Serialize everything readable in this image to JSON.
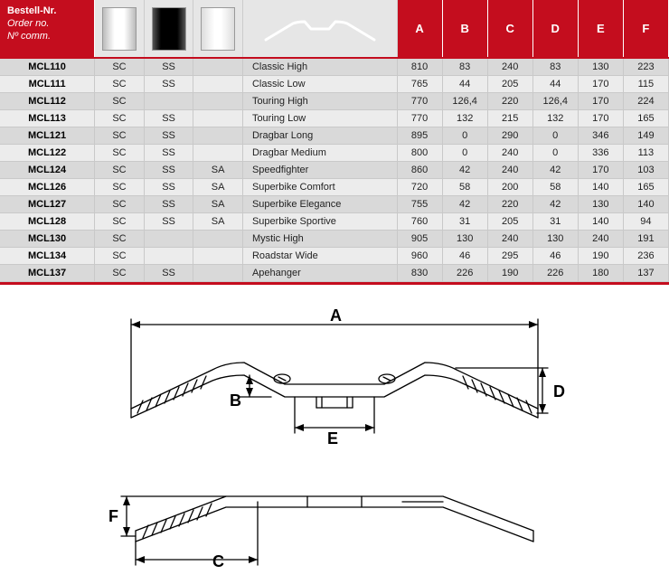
{
  "header": {
    "order_labels": [
      "Bestell-Nr.",
      "Order no.",
      "Nº comm."
    ],
    "dims": [
      "A",
      "B",
      "C",
      "D",
      "E",
      "F"
    ]
  },
  "colors": {
    "header_bg": "#c40d1e",
    "header_fg": "#ffffff",
    "row_odd": "#d9d9d9",
    "row_even": "#ececec",
    "border": "#c9c9c9"
  },
  "swatches": [
    {
      "name": "chrome-swatch",
      "style": "sw-chrome"
    },
    {
      "name": "black-swatch",
      "style": "sw-black"
    },
    {
      "name": "silver-swatch",
      "style": "sw-silver"
    }
  ],
  "rows": [
    {
      "part": "MCL110",
      "sc": "SC",
      "ss": "SS",
      "sa": "",
      "name": "Classic High",
      "a": "810",
      "b": "83",
      "c": "240",
      "d": "83",
      "e": "130",
      "f": "223"
    },
    {
      "part": "MCL111",
      "sc": "SC",
      "ss": "SS",
      "sa": "",
      "name": "Classic Low",
      "a": "765",
      "b": "44",
      "c": "205",
      "d": "44",
      "e": "170",
      "f": "115"
    },
    {
      "part": "MCL112",
      "sc": "SC",
      "ss": "",
      "sa": "",
      "name": "Touring High",
      "a": "770",
      "b": "126,4",
      "c": "220",
      "d": "126,4",
      "e": "170",
      "f": "224"
    },
    {
      "part": "MCL113",
      "sc": "SC",
      "ss": "SS",
      "sa": "",
      "name": "Touring Low",
      "a": "770",
      "b": "132",
      "c": "215",
      "d": "132",
      "e": "170",
      "f": "165"
    },
    {
      "part": "MCL121",
      "sc": "SC",
      "ss": "SS",
      "sa": "",
      "name": "Dragbar Long",
      "a": "895",
      "b": "0",
      "c": "290",
      "d": "0",
      "e": "346",
      "f": "149"
    },
    {
      "part": "MCL122",
      "sc": "SC",
      "ss": "SS",
      "sa": "",
      "name": "Dragbar Medium",
      "a": "800",
      "b": "0",
      "c": "240",
      "d": "0",
      "e": "336",
      "f": "113"
    },
    {
      "part": "MCL124",
      "sc": "SC",
      "ss": "SS",
      "sa": "SA",
      "name": "Speedfighter",
      "a": "860",
      "b": "42",
      "c": "240",
      "d": "42",
      "e": "170",
      "f": "103"
    },
    {
      "part": "MCL126",
      "sc": "SC",
      "ss": "SS",
      "sa": "SA",
      "name": "Superbike Comfort",
      "a": "720",
      "b": "58",
      "c": "200",
      "d": "58",
      "e": "140",
      "f": "165"
    },
    {
      "part": "MCL127",
      "sc": "SC",
      "ss": "SS",
      "sa": "SA",
      "name": "Superbike Elegance",
      "a": "755",
      "b": "42",
      "c": "220",
      "d": "42",
      "e": "130",
      "f": "140"
    },
    {
      "part": "MCL128",
      "sc": "SC",
      "ss": "SS",
      "sa": "SA",
      "name": "Superbike Sportive",
      "a": "760",
      "b": "31",
      "c": "205",
      "d": "31",
      "e": "140",
      "f": "94"
    },
    {
      "part": "MCL130",
      "sc": "SC",
      "ss": "",
      "sa": "",
      "name": "Mystic High",
      "a": "905",
      "b": "130",
      "c": "240",
      "d": "130",
      "e": "240",
      "f": "191"
    },
    {
      "part": "MCL134",
      "sc": "SC",
      "ss": "",
      "sa": "",
      "name": "Roadstar Wide",
      "a": "960",
      "b": "46",
      "c": "295",
      "d": "46",
      "e": "190",
      "f": "236"
    },
    {
      "part": "MCL137",
      "sc": "SC",
      "ss": "SS",
      "sa": "",
      "name": "Apehanger",
      "a": "830",
      "b": "226",
      "c": "190",
      "d": "226",
      "e": "180",
      "f": "137"
    }
  ],
  "diagram": {
    "labels": {
      "A": "A",
      "B": "B",
      "C": "C",
      "D": "D",
      "E": "E",
      "F": "F"
    },
    "stroke": "#000000",
    "stroke_width": 1.3,
    "label_fontsize": 18,
    "label_fontweight": "bold"
  }
}
